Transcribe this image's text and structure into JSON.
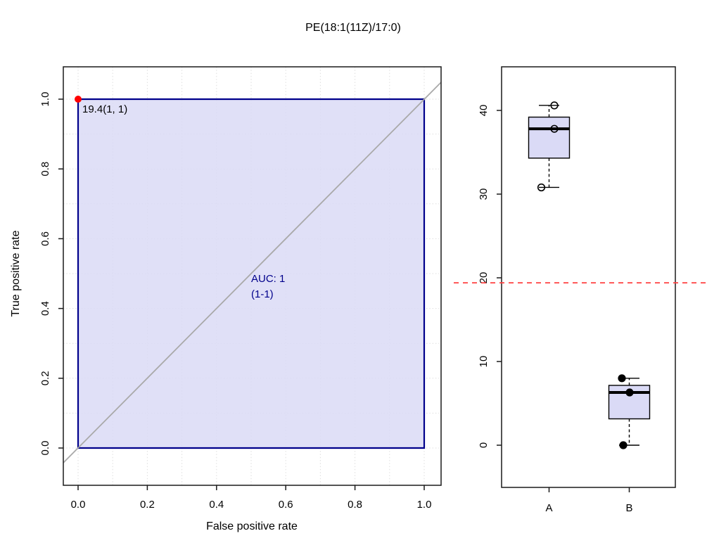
{
  "title": "PE(18:1(11Z)/17:0)",
  "colors": {
    "roc_line": "#00008B",
    "roc_fill": "#DADAF6",
    "auc_text": "#00008B",
    "threshold_dot": "#FF0000",
    "diagonal": "#A9A9A9",
    "grid": "#DEDEDE",
    "hline_red": "#FF4040",
    "frame": "#1A1A1A",
    "box_fill": "#DADAF6"
  },
  "chart_data": [
    {
      "type": "line",
      "name": "roc-curve",
      "xlabel": "False positive rate",
      "ylabel": "True positive rate",
      "xlim": [
        0,
        1
      ],
      "ylim": [
        0,
        1
      ],
      "xtick_labels": [
        "0.0",
        "0.2",
        "0.4",
        "0.6",
        "0.8",
        "1.0"
      ],
      "ytick_labels": [
        "0.0",
        "0.2",
        "0.4",
        "0.6",
        "0.8",
        "1.0"
      ],
      "grid": "dotted, every 0.1, both axes",
      "points": [
        [
          0,
          0
        ],
        [
          0,
          1
        ],
        [
          1,
          1
        ]
      ],
      "area_under_curve_shaded": true,
      "diagonal_reference": true,
      "auc_label": "AUC: 1",
      "auc_ci_label": "(1-1)",
      "threshold_label": "19.4(1, 1)",
      "threshold_point": [
        0,
        1
      ]
    },
    {
      "type": "boxplot",
      "name": "group-boxplot",
      "categories": [
        "A",
        "B"
      ],
      "ytick_labels": [
        "0",
        "10",
        "20",
        "30",
        "40"
      ],
      "ylim": [
        -5,
        45
      ],
      "grid": false,
      "series": [
        {
          "name": "A",
          "values": [
            30.8,
            37.8,
            40.6
          ],
          "point_style": "open",
          "stats": {
            "min": 30.8,
            "q1": 34.3,
            "median": 37.8,
            "q3": 39.2,
            "max": 40.6
          }
        },
        {
          "name": "B",
          "values": [
            0,
            6.3,
            8
          ],
          "point_style": "filled",
          "stats": {
            "min": 0,
            "q1": 3.15,
            "median": 6.3,
            "q3": 7.15,
            "max": 8
          }
        }
      ],
      "hline": {
        "y": 19.4,
        "style": "dashed",
        "color": "#FF4040"
      }
    }
  ]
}
